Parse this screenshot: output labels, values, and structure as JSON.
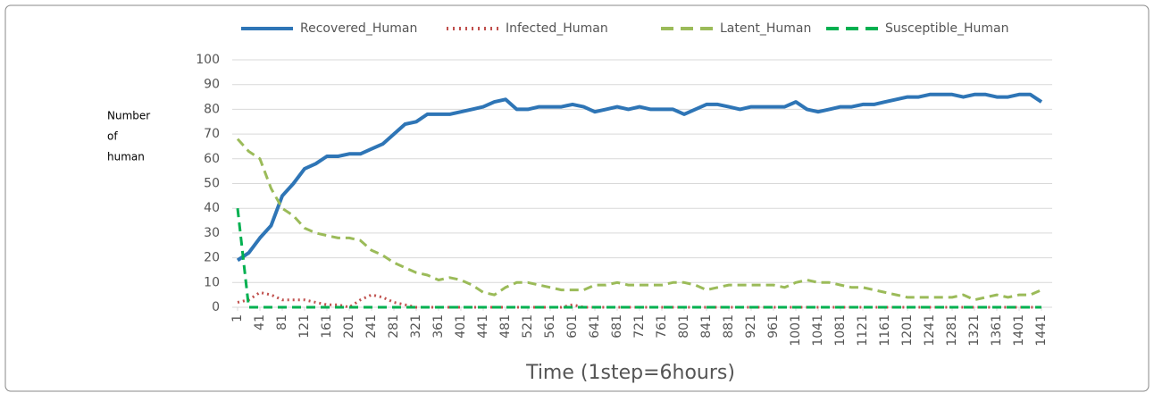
{
  "chart_data": {
    "type": "line",
    "y_label_lines": [
      "Number",
      "of",
      "human"
    ],
    "x_label": "Time (1step=6hours)",
    "x": [
      1,
      21,
      41,
      61,
      81,
      101,
      121,
      141,
      161,
      181,
      201,
      221,
      241,
      261,
      281,
      301,
      321,
      341,
      361,
      381,
      401,
      421,
      441,
      461,
      481,
      501,
      521,
      541,
      561,
      581,
      601,
      621,
      641,
      661,
      681,
      701,
      721,
      741,
      761,
      781,
      801,
      821,
      841,
      861,
      881,
      901,
      921,
      941,
      961,
      981,
      1001,
      1021,
      1041,
      1061,
      1081,
      1101,
      1121,
      1141,
      1161,
      1181,
      1201,
      1221,
      1241,
      1261,
      1281,
      1301,
      1321,
      1341,
      1361,
      1381,
      1401,
      1421,
      1441
    ],
    "series": [
      {
        "name": "Recovered_Human",
        "color": "#2e75b6",
        "style": "solid",
        "values": [
          19,
          22,
          28,
          33,
          45,
          50,
          56,
          58,
          61,
          61,
          62,
          62,
          64,
          66,
          70,
          74,
          75,
          78,
          78,
          78,
          79,
          80,
          81,
          83,
          84,
          80,
          80,
          81,
          81,
          81,
          82,
          81,
          79,
          80,
          81,
          80,
          81,
          80,
          80,
          80,
          78,
          80,
          82,
          82,
          81,
          80,
          81,
          81,
          81,
          81,
          83,
          80,
          79,
          80,
          81,
          81,
          82,
          82,
          83,
          84,
          85,
          85,
          86,
          86,
          86,
          85,
          86,
          86,
          85,
          85,
          86,
          86,
          83
        ]
      },
      {
        "name": "Infected_Human",
        "color": "#c0504d",
        "style": "dotted",
        "values": [
          2,
          3,
          6,
          5,
          3,
          3,
          3,
          2,
          1,
          1,
          0,
          3,
          5,
          4,
          2,
          1,
          0,
          0,
          0,
          0,
          0,
          0,
          0,
          0,
          0,
          0,
          0,
          0,
          0,
          0,
          1,
          0,
          0,
          0,
          0,
          0,
          0,
          0,
          0,
          0,
          0,
          0,
          0,
          0,
          0,
          0,
          0,
          0,
          0,
          0,
          0,
          0,
          0,
          0,
          0,
          0,
          0,
          0,
          0,
          0,
          0,
          0,
          0,
          0,
          0,
          0,
          0,
          0,
          0,
          0,
          0,
          0,
          0
        ]
      },
      {
        "name": "Latent_Human",
        "color": "#9bbb59",
        "style": "dashed",
        "values": [
          68,
          63,
          60,
          48,
          40,
          37,
          32,
          30,
          29,
          28,
          28,
          27,
          23,
          21,
          18,
          16,
          14,
          13,
          11,
          12,
          11,
          9,
          6,
          5,
          8,
          10,
          10,
          9,
          8,
          7,
          7,
          7,
          9,
          9,
          10,
          9,
          9,
          9,
          9,
          10,
          10,
          9,
          7,
          8,
          9,
          9,
          9,
          9,
          9,
          8,
          10,
          11,
          10,
          10,
          9,
          8,
          8,
          7,
          6,
          5,
          4,
          4,
          4,
          4,
          4,
          5,
          3,
          4,
          5,
          4,
          5,
          5,
          7
        ]
      },
      {
        "name": "Susceptible_Human",
        "color": "#00b050",
        "style": "dashed",
        "values": [
          40,
          0,
          0,
          0,
          0,
          0,
          0,
          0,
          0,
          0,
          0,
          0,
          0,
          0,
          0,
          0,
          0,
          0,
          0,
          0,
          0,
          0,
          0,
          0,
          0,
          0,
          0,
          0,
          0,
          0,
          0,
          0,
          0,
          0,
          0,
          0,
          0,
          0,
          0,
          0,
          0,
          0,
          0,
          0,
          0,
          0,
          0,
          0,
          0,
          0,
          0,
          0,
          0,
          0,
          0,
          0,
          0,
          0,
          0,
          0,
          0,
          0,
          0,
          0,
          0,
          0,
          0,
          0,
          0,
          0,
          0,
          0,
          0
        ]
      }
    ],
    "xlim": [
      1,
      1441
    ],
    "xticks": [
      1,
      41,
      81,
      121,
      161,
      201,
      241,
      281,
      321,
      361,
      401,
      441,
      481,
      521,
      561,
      601,
      641,
      681,
      721,
      761,
      801,
      841,
      881,
      921,
      961,
      1001,
      1041,
      1081,
      1121,
      1161,
      1201,
      1241,
      1281,
      1321,
      1361,
      1401,
      1441
    ],
    "ylim": [
      0,
      100
    ],
    "yticks": [
      0,
      10,
      20,
      30,
      40,
      50,
      60,
      70,
      80,
      90,
      100
    ],
    "grid": true
  }
}
